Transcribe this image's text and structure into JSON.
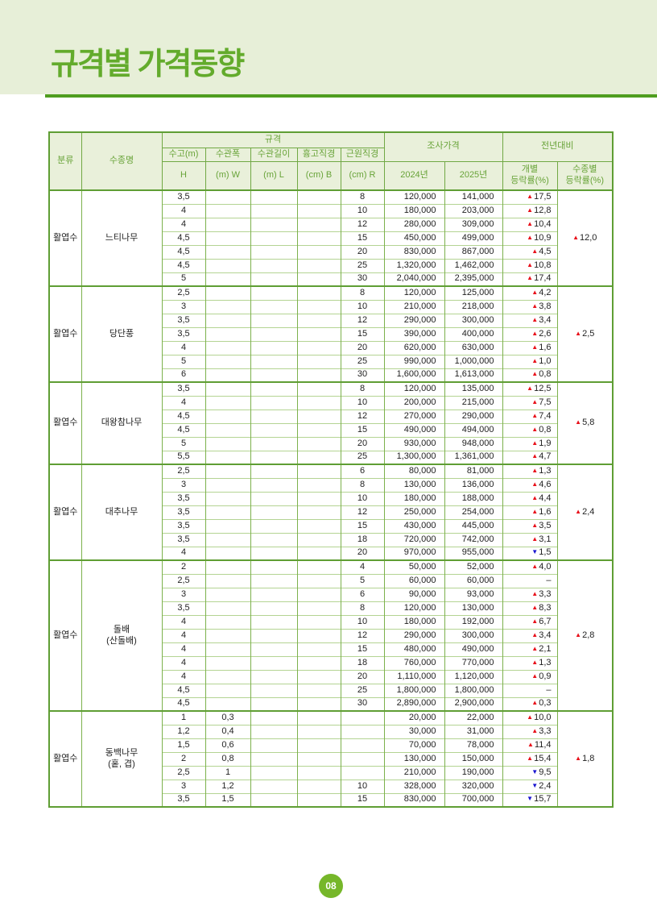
{
  "page": {
    "title": "규격별 가격동향",
    "page_number": "08"
  },
  "colors": {
    "band_bg": "#e7efd8",
    "title_green": "#63ab2c",
    "underline_green": "#4f9d1f",
    "table_border_green": "#5f9e34",
    "row_line_green": "#b4d493",
    "header_text_green": "#68a338",
    "up_red": "#e8101a",
    "down_blue": "#1713cf",
    "badge_green": "#76b72a"
  },
  "table": {
    "header": {
      "category": "분류",
      "species": "수종명",
      "spec_group": "규격",
      "price_group": "조사가격",
      "yoy_group": "전년대비",
      "spec_top": [
        "수고(m)",
        "수관폭",
        "수관길이",
        "흉고직경",
        "근원직경"
      ],
      "spec_bottom": [
        "H",
        "(m) W",
        "(m) L",
        "(cm) B",
        "(cm) R"
      ],
      "price_cols": [
        "2024년",
        "2025년"
      ],
      "yoy_individual": [
        "개별",
        "등락률(%)"
      ],
      "yoy_species": [
        "수종별",
        "등락률(%)"
      ]
    },
    "groups": [
      {
        "category": "활엽수",
        "species_lines": [
          "느티나무"
        ],
        "group_rate": {
          "dir": "up",
          "value": "12,0"
        },
        "rows": [
          {
            "h": "3,5",
            "w": "",
            "l": "",
            "b": "",
            "r": "8",
            "p2024": "120,000",
            "p2025": "141,000",
            "rate": {
              "dir": "up",
              "value": "17,5"
            }
          },
          {
            "h": "4",
            "w": "",
            "l": "",
            "b": "",
            "r": "10",
            "p2024": "180,000",
            "p2025": "203,000",
            "rate": {
              "dir": "up",
              "value": "12,8"
            }
          },
          {
            "h": "4",
            "w": "",
            "l": "",
            "b": "",
            "r": "12",
            "p2024": "280,000",
            "p2025": "309,000",
            "rate": {
              "dir": "up",
              "value": "10,4"
            }
          },
          {
            "h": "4,5",
            "w": "",
            "l": "",
            "b": "",
            "r": "15",
            "p2024": "450,000",
            "p2025": "499,000",
            "rate": {
              "dir": "up",
              "value": "10,9"
            }
          },
          {
            "h": "4,5",
            "w": "",
            "l": "",
            "b": "",
            "r": "20",
            "p2024": "830,000",
            "p2025": "867,000",
            "rate": {
              "dir": "up",
              "value": "4,5"
            }
          },
          {
            "h": "4,5",
            "w": "",
            "l": "",
            "b": "",
            "r": "25",
            "p2024": "1,320,000",
            "p2025": "1,462,000",
            "rate": {
              "dir": "up",
              "value": "10,8"
            }
          },
          {
            "h": "5",
            "w": "",
            "l": "",
            "b": "",
            "r": "30",
            "p2024": "2,040,000",
            "p2025": "2,395,000",
            "rate": {
              "dir": "up",
              "value": "17,4"
            }
          }
        ]
      },
      {
        "category": "활엽수",
        "species_lines": [
          "당단풍"
        ],
        "group_rate": {
          "dir": "up",
          "value": "2,5"
        },
        "rows": [
          {
            "h": "2,5",
            "w": "",
            "l": "",
            "b": "",
            "r": "8",
            "p2024": "120,000",
            "p2025": "125,000",
            "rate": {
              "dir": "up",
              "value": "4,2"
            }
          },
          {
            "h": "3",
            "w": "",
            "l": "",
            "b": "",
            "r": "10",
            "p2024": "210,000",
            "p2025": "218,000",
            "rate": {
              "dir": "up",
              "value": "3,8"
            }
          },
          {
            "h": "3,5",
            "w": "",
            "l": "",
            "b": "",
            "r": "12",
            "p2024": "290,000",
            "p2025": "300,000",
            "rate": {
              "dir": "up",
              "value": "3,4"
            }
          },
          {
            "h": "3,5",
            "w": "",
            "l": "",
            "b": "",
            "r": "15",
            "p2024": "390,000",
            "p2025": "400,000",
            "rate": {
              "dir": "up",
              "value": "2,6"
            }
          },
          {
            "h": "4",
            "w": "",
            "l": "",
            "b": "",
            "r": "20",
            "p2024": "620,000",
            "p2025": "630,000",
            "rate": {
              "dir": "up",
              "value": "1,6"
            }
          },
          {
            "h": "5",
            "w": "",
            "l": "",
            "b": "",
            "r": "25",
            "p2024": "990,000",
            "p2025": "1,000,000",
            "rate": {
              "dir": "up",
              "value": "1,0"
            }
          },
          {
            "h": "6",
            "w": "",
            "l": "",
            "b": "",
            "r": "30",
            "p2024": "1,600,000",
            "p2025": "1,613,000",
            "rate": {
              "dir": "up",
              "value": "0,8"
            }
          }
        ]
      },
      {
        "category": "활엽수",
        "species_lines": [
          "대왕참나무"
        ],
        "group_rate": {
          "dir": "up",
          "value": "5,8"
        },
        "rows": [
          {
            "h": "3,5",
            "w": "",
            "l": "",
            "b": "",
            "r": "8",
            "p2024": "120,000",
            "p2025": "135,000",
            "rate": {
              "dir": "up",
              "value": "12,5"
            }
          },
          {
            "h": "4",
            "w": "",
            "l": "",
            "b": "",
            "r": "10",
            "p2024": "200,000",
            "p2025": "215,000",
            "rate": {
              "dir": "up",
              "value": "7,5"
            }
          },
          {
            "h": "4,5",
            "w": "",
            "l": "",
            "b": "",
            "r": "12",
            "p2024": "270,000",
            "p2025": "290,000",
            "rate": {
              "dir": "up",
              "value": "7,4"
            }
          },
          {
            "h": "4,5",
            "w": "",
            "l": "",
            "b": "",
            "r": "15",
            "p2024": "490,000",
            "p2025": "494,000",
            "rate": {
              "dir": "up",
              "value": "0,8"
            }
          },
          {
            "h": "5",
            "w": "",
            "l": "",
            "b": "",
            "r": "20",
            "p2024": "930,000",
            "p2025": "948,000",
            "rate": {
              "dir": "up",
              "value": "1,9"
            }
          },
          {
            "h": "5,5",
            "w": "",
            "l": "",
            "b": "",
            "r": "25",
            "p2024": "1,300,000",
            "p2025": "1,361,000",
            "rate": {
              "dir": "up",
              "value": "4,7"
            }
          }
        ]
      },
      {
        "category": "활엽수",
        "species_lines": [
          "대추나무"
        ],
        "group_rate": {
          "dir": "up",
          "value": "2,4"
        },
        "rows": [
          {
            "h": "2,5",
            "w": "",
            "l": "",
            "b": "",
            "r": "6",
            "p2024": "80,000",
            "p2025": "81,000",
            "rate": {
              "dir": "up",
              "value": "1,3"
            }
          },
          {
            "h": "3",
            "w": "",
            "l": "",
            "b": "",
            "r": "8",
            "p2024": "130,000",
            "p2025": "136,000",
            "rate": {
              "dir": "up",
              "value": "4,6"
            }
          },
          {
            "h": "3,5",
            "w": "",
            "l": "",
            "b": "",
            "r": "10",
            "p2024": "180,000",
            "p2025": "188,000",
            "rate": {
              "dir": "up",
              "value": "4,4"
            }
          },
          {
            "h": "3,5",
            "w": "",
            "l": "",
            "b": "",
            "r": "12",
            "p2024": "250,000",
            "p2025": "254,000",
            "rate": {
              "dir": "up",
              "value": "1,6"
            }
          },
          {
            "h": "3,5",
            "w": "",
            "l": "",
            "b": "",
            "r": "15",
            "p2024": "430,000",
            "p2025": "445,000",
            "rate": {
              "dir": "up",
              "value": "3,5"
            }
          },
          {
            "h": "3,5",
            "w": "",
            "l": "",
            "b": "",
            "r": "18",
            "p2024": "720,000",
            "p2025": "742,000",
            "rate": {
              "dir": "up",
              "value": "3,1"
            }
          },
          {
            "h": "4",
            "w": "",
            "l": "",
            "b": "",
            "r": "20",
            "p2024": "970,000",
            "p2025": "955,000",
            "rate": {
              "dir": "down",
              "value": "1,5"
            }
          }
        ]
      },
      {
        "category": "활엽수",
        "species_lines": [
          "돌배",
          "(산돌배)"
        ],
        "group_rate": {
          "dir": "up",
          "value": "2,8"
        },
        "rows": [
          {
            "h": "2",
            "w": "",
            "l": "",
            "b": "",
            "r": "4",
            "p2024": "50,000",
            "p2025": "52,000",
            "rate": {
              "dir": "up",
              "value": "4,0"
            }
          },
          {
            "h": "2,5",
            "w": "",
            "l": "",
            "b": "",
            "r": "5",
            "p2024": "60,000",
            "p2025": "60,000",
            "rate": {
              "dir": "none",
              "value": "–"
            }
          },
          {
            "h": "3",
            "w": "",
            "l": "",
            "b": "",
            "r": "6",
            "p2024": "90,000",
            "p2025": "93,000",
            "rate": {
              "dir": "up",
              "value": "3,3"
            }
          },
          {
            "h": "3,5",
            "w": "",
            "l": "",
            "b": "",
            "r": "8",
            "p2024": "120,000",
            "p2025": "130,000",
            "rate": {
              "dir": "up",
              "value": "8,3"
            }
          },
          {
            "h": "4",
            "w": "",
            "l": "",
            "b": "",
            "r": "10",
            "p2024": "180,000",
            "p2025": "192,000",
            "rate": {
              "dir": "up",
              "value": "6,7"
            }
          },
          {
            "h": "4",
            "w": "",
            "l": "",
            "b": "",
            "r": "12",
            "p2024": "290,000",
            "p2025": "300,000",
            "rate": {
              "dir": "up",
              "value": "3,4"
            }
          },
          {
            "h": "4",
            "w": "",
            "l": "",
            "b": "",
            "r": "15",
            "p2024": "480,000",
            "p2025": "490,000",
            "rate": {
              "dir": "up",
              "value": "2,1"
            }
          },
          {
            "h": "4",
            "w": "",
            "l": "",
            "b": "",
            "r": "18",
            "p2024": "760,000",
            "p2025": "770,000",
            "rate": {
              "dir": "up",
              "value": "1,3"
            }
          },
          {
            "h": "4",
            "w": "",
            "l": "",
            "b": "",
            "r": "20",
            "p2024": "1,110,000",
            "p2025": "1,120,000",
            "rate": {
              "dir": "up",
              "value": "0,9"
            }
          },
          {
            "h": "4,5",
            "w": "",
            "l": "",
            "b": "",
            "r": "25",
            "p2024": "1,800,000",
            "p2025": "1,800,000",
            "rate": {
              "dir": "none",
              "value": "–"
            }
          },
          {
            "h": "4,5",
            "w": "",
            "l": "",
            "b": "",
            "r": "30",
            "p2024": "2,890,000",
            "p2025": "2,900,000",
            "rate": {
              "dir": "up",
              "value": "0,3"
            }
          }
        ]
      },
      {
        "category": "활엽수",
        "species_lines": [
          "동백나무",
          "(홑, 겹)"
        ],
        "group_rate": {
          "dir": "up",
          "value": "1,8"
        },
        "rows": [
          {
            "h": "1",
            "w": "0,3",
            "l": "",
            "b": "",
            "r": "",
            "p2024": "20,000",
            "p2025": "22,000",
            "rate": {
              "dir": "up",
              "value": "10,0"
            }
          },
          {
            "h": "1,2",
            "w": "0,4",
            "l": "",
            "b": "",
            "r": "",
            "p2024": "30,000",
            "p2025": "31,000",
            "rate": {
              "dir": "up",
              "value": "3,3"
            }
          },
          {
            "h": "1,5",
            "w": "0,6",
            "l": "",
            "b": "",
            "r": "",
            "p2024": "70,000",
            "p2025": "78,000",
            "rate": {
              "dir": "up",
              "value": "11,4"
            }
          },
          {
            "h": "2",
            "w": "0,8",
            "l": "",
            "b": "",
            "r": "",
            "p2024": "130,000",
            "p2025": "150,000",
            "rate": {
              "dir": "up",
              "value": "15,4"
            }
          },
          {
            "h": "2,5",
            "w": "1",
            "l": "",
            "b": "",
            "r": "",
            "p2024": "210,000",
            "p2025": "190,000",
            "rate": {
              "dir": "down",
              "value": "9,5"
            }
          },
          {
            "h": "3",
            "w": "1,2",
            "l": "",
            "b": "",
            "r": "10",
            "p2024": "328,000",
            "p2025": "320,000",
            "rate": {
              "dir": "down",
              "value": "2,4"
            }
          },
          {
            "h": "3,5",
            "w": "1,5",
            "l": "",
            "b": "",
            "r": "15",
            "p2024": "830,000",
            "p2025": "700,000",
            "rate": {
              "dir": "down",
              "value": "15,7"
            }
          }
        ]
      }
    ]
  }
}
